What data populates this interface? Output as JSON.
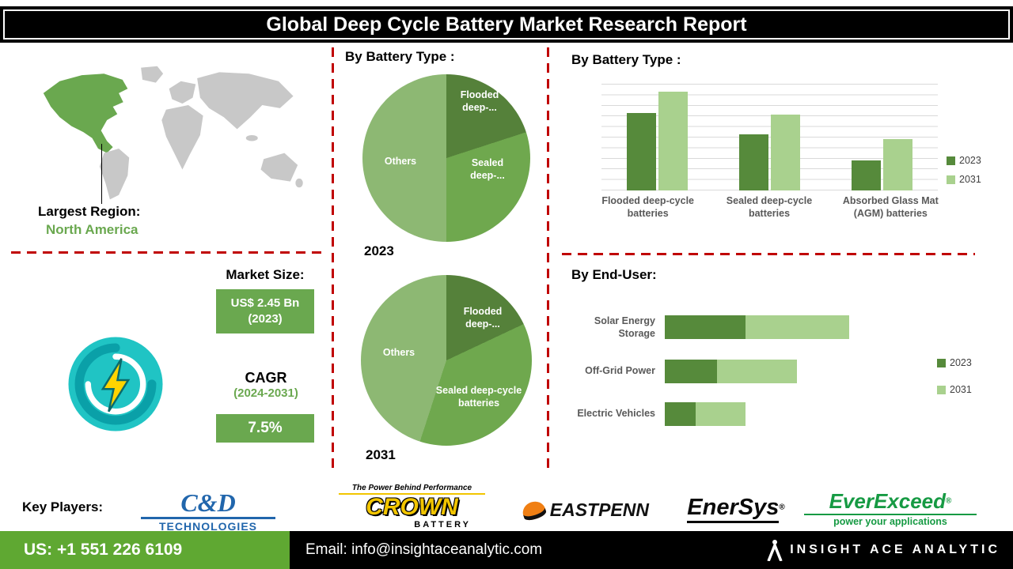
{
  "header": {
    "title": "Global Deep Cycle Battery Market Research Report"
  },
  "region": {
    "label": "Largest Region:",
    "value": "North America"
  },
  "market": {
    "size_label": "Market Size:",
    "size_value": "US$ 2.45 Bn",
    "size_year": "(2023)",
    "cagr_label": "CAGR",
    "cagr_period": "(2024-2031)",
    "cagr_value": "7.5%"
  },
  "chart_data": [
    {
      "type": "pie",
      "title": "By Battery Type :",
      "year": "2023",
      "categories": [
        "Flooded deep-...",
        "Sealed deep-...",
        "Others"
      ],
      "values": [
        20,
        30,
        50
      ],
      "colors": [
        "#55813a",
        "#6fa84e",
        "#8db873"
      ],
      "legend_position": "none"
    },
    {
      "type": "pie",
      "title": "By Battery Type :",
      "year": "2031",
      "categories": [
        "Flooded deep-...",
        "Sealed deep-cycle batteries",
        "Others"
      ],
      "values": [
        18,
        37,
        45
      ],
      "colors": [
        "#55813a",
        "#6fa84e",
        "#8db873"
      ],
      "legend_position": "none"
    },
    {
      "type": "bar",
      "title": "By  Battery Type :",
      "categories": [
        "Flooded deep-cycle batteries",
        "Sealed deep-cycle batteries",
        "Absorbed Glass Mat (AGM) batteries"
      ],
      "series": [
        {
          "name": "2023",
          "color": "#568a3b",
          "values": [
            88,
            64,
            34
          ]
        },
        {
          "name": "2031",
          "color": "#a9d18e",
          "values": [
            112,
            86,
            58
          ]
        }
      ],
      "ylim": [
        0,
        120
      ],
      "grid": true,
      "legend_position": "right"
    },
    {
      "type": "bar-horizontal-stacked",
      "title": "By End-User:",
      "categories": [
        "Solar Energy Storage",
        "Off-Grid Power",
        "Electric Vehicles"
      ],
      "series": [
        {
          "name": "2023",
          "color": "#568a3b",
          "values": [
            31,
            20,
            12
          ]
        },
        {
          "name": "2031",
          "color": "#a9d18e",
          "values": [
            40,
            31,
            19
          ]
        }
      ],
      "xlim": [
        0,
        80
      ],
      "grid": false,
      "legend_position": "right"
    }
  ],
  "key_players": {
    "label": "Key Players:",
    "logos": [
      {
        "name": "C&D",
        "sub": "TECHNOLOGIES"
      },
      {
        "name": "CROWN",
        "tagline": "The Power Behind Performance",
        "sub": "BATTERY"
      },
      {
        "name": "EASTPENN"
      },
      {
        "name": "EnerSys",
        "reg": "®"
      },
      {
        "name": "EverExceed",
        "reg": "®",
        "sub": "power your applications"
      }
    ]
  },
  "footer": {
    "phone": "US: +1 551 226 6109",
    "email": "Email: info@insightaceanalytic.com",
    "brand": "INSIGHT ACE ANALYTIC"
  },
  "colors": {
    "accent_red": "#c00000",
    "green_dark": "#568a3b",
    "green_light": "#a9d18e",
    "green_brand": "#6aa84f",
    "footer_green": "#5fa832"
  }
}
